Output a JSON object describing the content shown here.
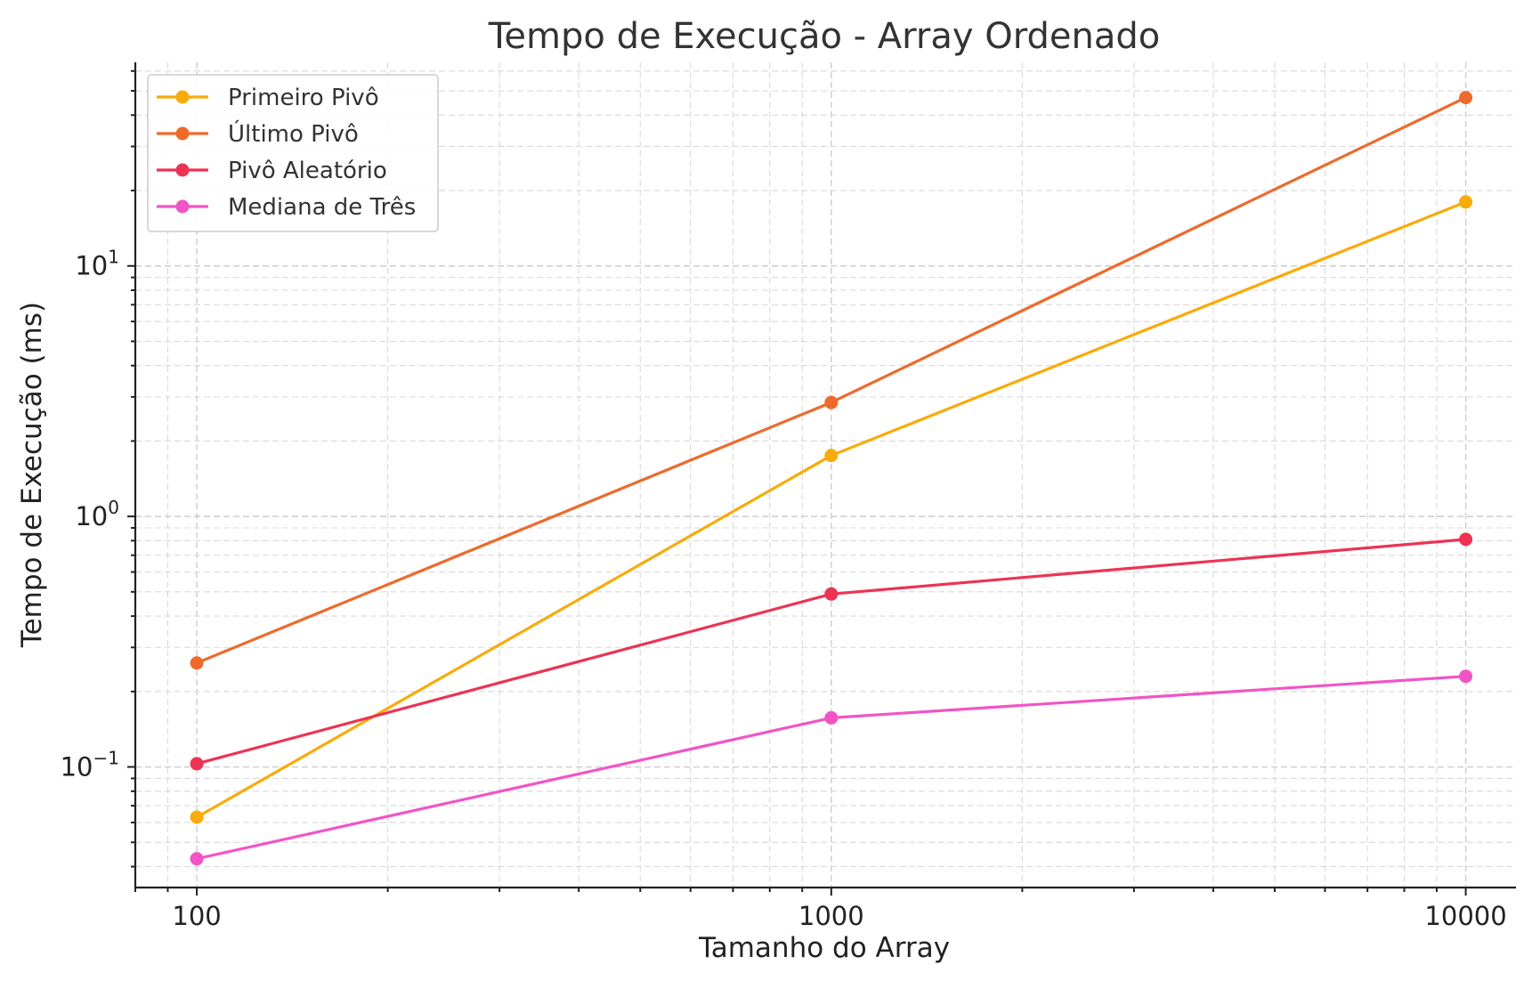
{
  "chart_data": {
    "type": "line",
    "title": "Tempo de Execução - Array Ordenado",
    "xlabel": "Tamanho do Array",
    "ylabel": "Tempo de Execução (ms)",
    "x_scale": "log",
    "y_scale": "log",
    "xlim": [
      80,
      12000
    ],
    "ylim": [
      0.033,
      65
    ],
    "x_ticks": [
      {
        "value": 100,
        "label": "100"
      },
      {
        "value": 1000,
        "label": "1000"
      },
      {
        "value": 10000,
        "label": "10000"
      }
    ],
    "y_ticks": [
      {
        "value": 0.1,
        "base": "10",
        "exp": "−1"
      },
      {
        "value": 1,
        "base": "10",
        "exp": "0"
      },
      {
        "value": 10,
        "base": "10",
        "exp": "1"
      }
    ],
    "grid": true,
    "legend_position": "top-left",
    "x": [
      100,
      1000,
      10000
    ],
    "series": [
      {
        "name": "Primeiro Pivô",
        "color": "#f9ab0b",
        "values": [
          0.063,
          1.75,
          18.0
        ]
      },
      {
        "name": "Último Pivô",
        "color": "#ee6a2b",
        "values": [
          0.26,
          2.85,
          47.0
        ]
      },
      {
        "name": "Pivô Aleatório",
        "color": "#ed3353",
        "values": [
          0.103,
          0.49,
          0.81
        ]
      },
      {
        "name": "Mediana de Três",
        "color": "#f254c5",
        "values": [
          0.043,
          0.157,
          0.23
        ]
      }
    ]
  }
}
